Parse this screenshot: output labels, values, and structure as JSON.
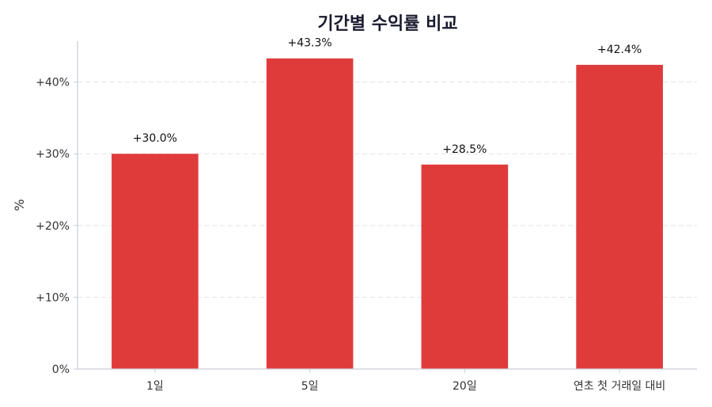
{
  "chart_data": {
    "type": "bar",
    "title": "기간별 수익률 비교",
    "xlabel": "",
    "ylabel": "%",
    "categories": [
      "1일",
      "5일",
      "20일",
      "연초 첫 거래일 대비"
    ],
    "values": [
      30.0,
      43.3,
      28.5,
      42.4
    ],
    "data_labels": [
      "+30.0%",
      "+43.3%",
      "+28.5%",
      "+42.4%"
    ],
    "yticks": [
      0,
      10,
      20,
      30,
      40
    ],
    "ytick_labels": [
      "0%",
      "+10%",
      "+20%",
      "+30%",
      "+40%"
    ],
    "ylim": [
      0,
      45.7
    ],
    "grid": "horizontal dashed",
    "bar_color": "#e03b3b",
    "grid_color": "#dde3ee",
    "axis_color": "#c9cdd6"
  }
}
